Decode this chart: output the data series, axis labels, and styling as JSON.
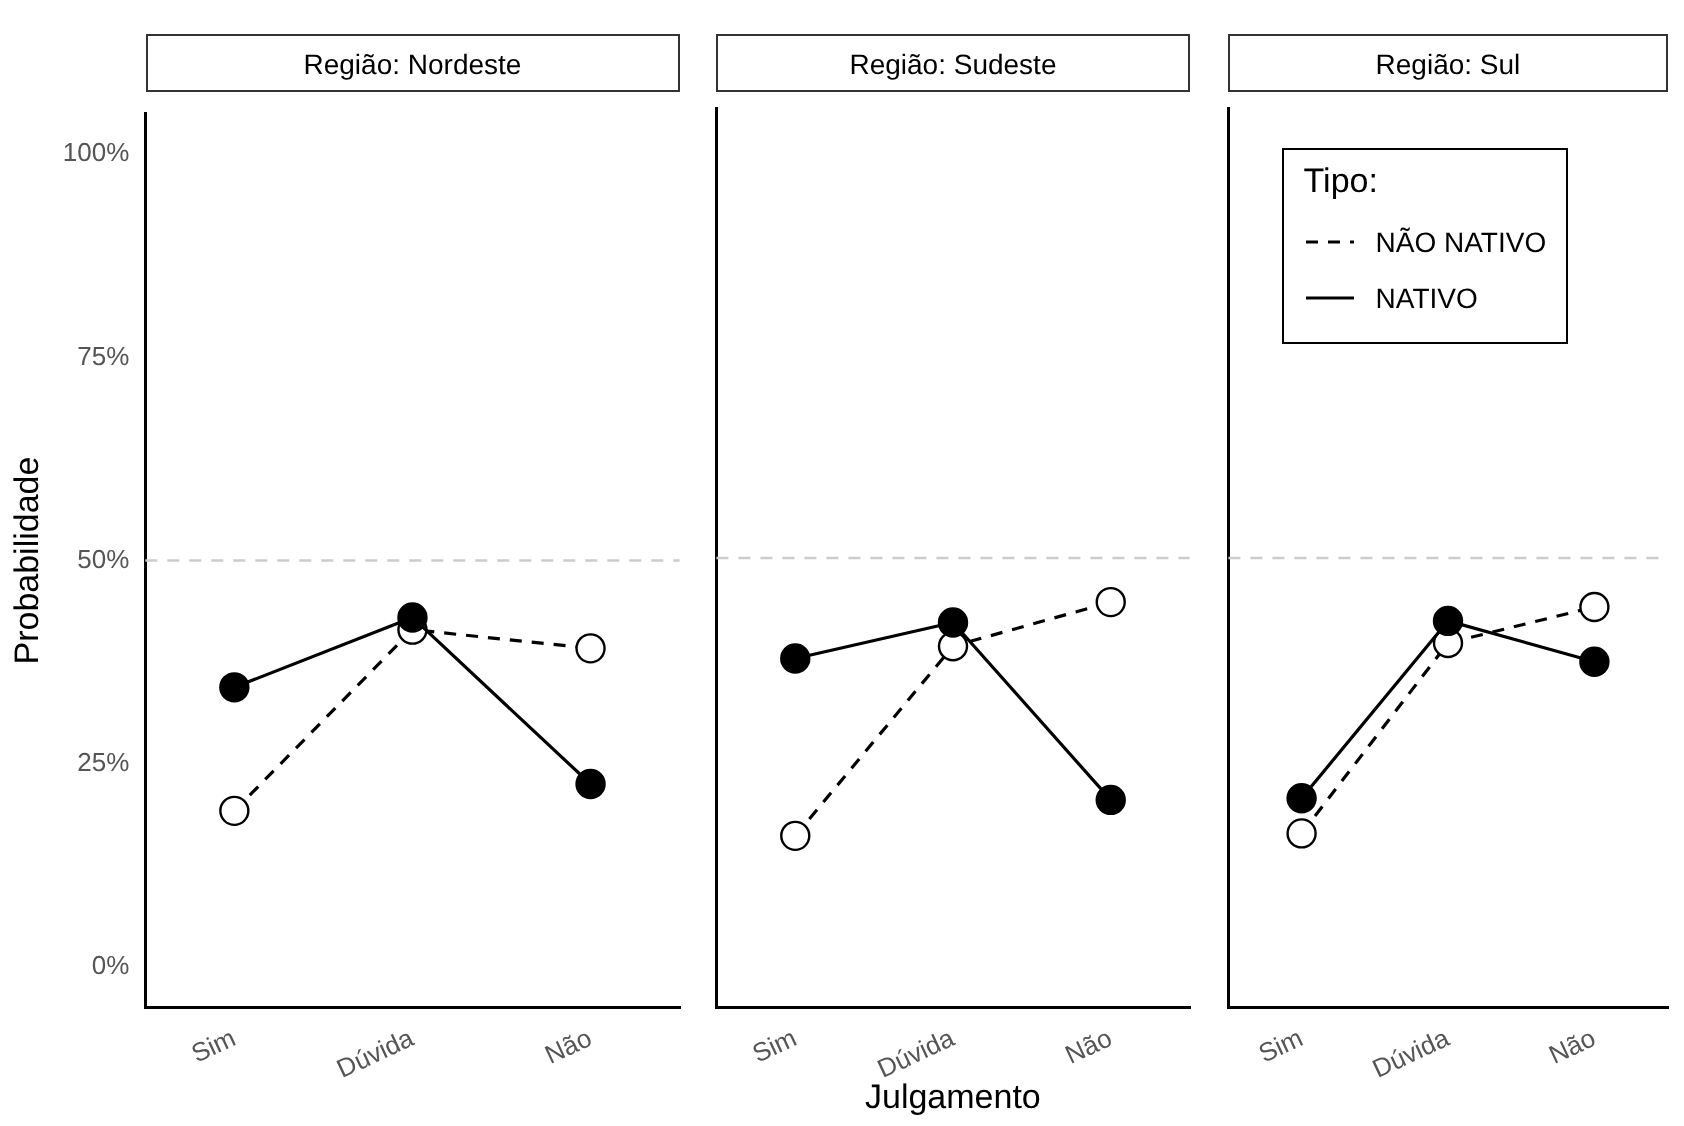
{
  "chart_data": [
    {
      "type": "line",
      "title": "Região: Nordeste",
      "ylabel": "Probabilidade",
      "categories": [
        "Sim",
        "Dúvida",
        "Não"
      ],
      "series": [
        {
          "color": "#000000",
          "line_style": "dashed",
          "values": [
            19.2,
            41.5,
            39.2
          ]
        },
        {
          "color": "#000000",
          "line_style": "solid",
          "values": [
            34.4,
            43.0,
            22.5
          ]
        }
      ],
      "ylim": [
        -5,
        105
      ],
      "yticks": [
        {
          "value": 0,
          "label": "0%"
        },
        {
          "value": 25,
          "label": "25%"
        },
        {
          "value": 50,
          "label": "50%"
        },
        {
          "value": 75,
          "label": "75%"
        },
        {
          "value": 100,
          "label": "100%"
        }
      ],
      "ref_lines": [
        {
          "axis": "y",
          "value": 50,
          "color": "#cccccc",
          "line_style": "dashed"
        }
      ],
      "marker": "circle",
      "grid": false,
      "legend": false
    },
    {
      "type": "line",
      "title": "Região: Sudeste",
      "xlabel": "Julgamento",
      "categories": [
        "Sim",
        "Dúvida",
        "Não"
      ],
      "series": [
        {
          "color": "#000000",
          "line_style": "dashed",
          "values": [
            16.0,
            39.2,
            44.6
          ]
        },
        {
          "color": "#000000",
          "line_style": "solid",
          "values": [
            37.7,
            42.1,
            20.4
          ]
        }
      ],
      "ylim": [
        -5,
        105
      ],
      "ref_lines": [
        {
          "axis": "y",
          "value": 50,
          "color": "#cccccc",
          "line_style": "dashed"
        }
      ],
      "marker": "circle",
      "grid": false,
      "legend": false,
      "tick_labels": "x"
    },
    {
      "type": "line",
      "title": "Região: Sul",
      "legend_title": "Tipo:",
      "categories": [
        "Sim",
        "Dúvida",
        "Não"
      ],
      "series": [
        {
          "name": "NÃO NATIVO",
          "color": "#000000",
          "line_style": "dashed",
          "values": [
            16.3,
            39.6,
            44.0
          ]
        },
        {
          "name": "NATIVO",
          "color": "#000000",
          "line_style": "solid",
          "values": [
            20.6,
            42.3,
            37.3
          ]
        }
      ],
      "ylim": [
        -5,
        105
      ],
      "ref_lines": [
        {
          "axis": "y",
          "value": 50,
          "color": "#cccccc",
          "line_style": "dashed"
        }
      ],
      "marker": "circle",
      "grid": false,
      "legend": "top right",
      "tick_labels": "x"
    }
  ]
}
